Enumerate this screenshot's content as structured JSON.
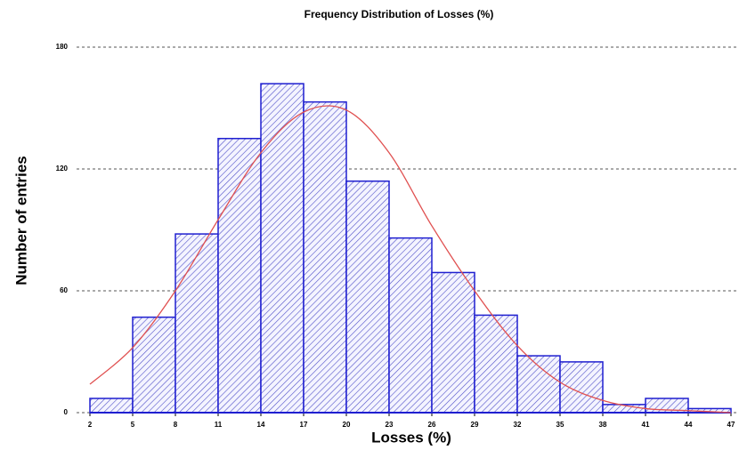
{
  "chart_data": {
    "type": "histogram",
    "title": "Frequency Distribution of Losses (%)",
    "x_label": "Losses (%)",
    "y_label": "Number of entries",
    "bins": [
      2,
      5,
      8,
      11,
      14,
      17,
      20,
      23,
      26,
      29,
      32,
      35,
      38,
      41,
      44,
      47
    ],
    "values": [
      7,
      47,
      88,
      135,
      162,
      153,
      114,
      86,
      69,
      48,
      28,
      25,
      4,
      7,
      2
    ],
    "color": "#1f1fd0",
    "curve": {
      "color": "#e05050",
      "x": [
        2,
        5,
        8,
        11,
        14,
        17,
        20,
        23,
        26,
        29,
        32,
        35,
        38,
        41,
        44,
        47
      ],
      "values": [
        14,
        32,
        60,
        95,
        128,
        148,
        149,
        128,
        92,
        60,
        33,
        15,
        6,
        2,
        1,
        0
      ]
    },
    "xlim": [
      2,
      47
    ],
    "xticks": [
      2,
      5,
      8,
      11,
      14,
      17,
      20,
      23,
      26,
      29,
      32,
      35,
      38,
      41,
      44,
      47
    ],
    "ylim": [
      0,
      180
    ],
    "yticks": [
      0,
      60,
      120,
      180
    ],
    "grid": true
  }
}
